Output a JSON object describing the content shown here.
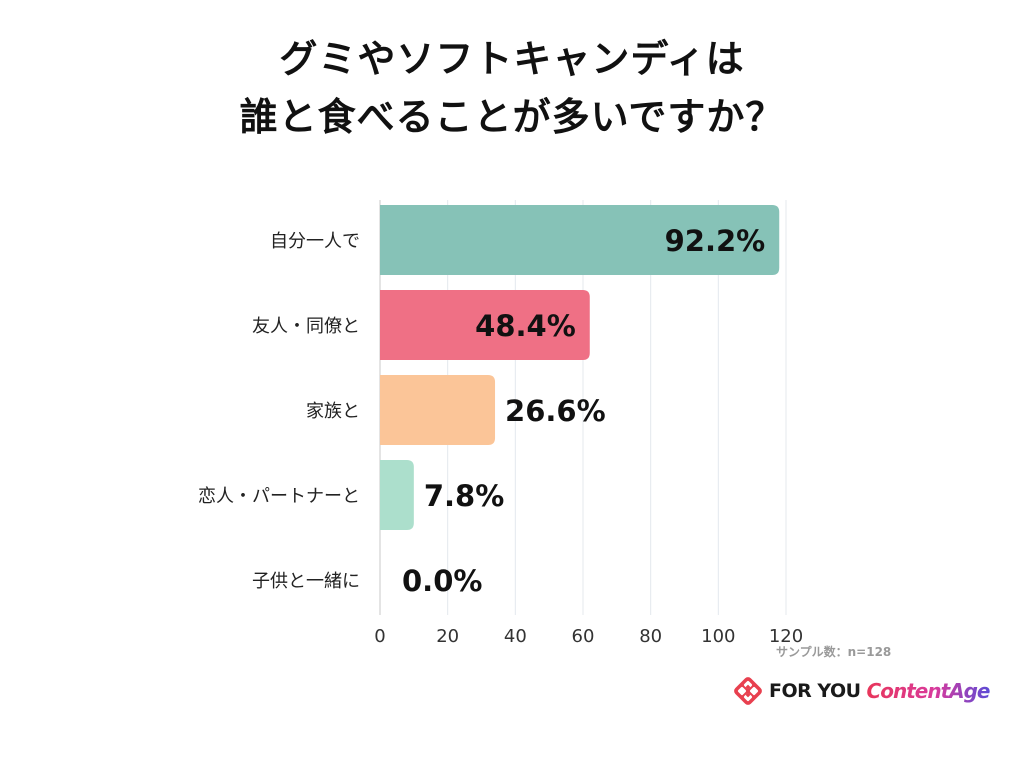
{
  "title": {
    "line1": "グミやソフトキャンディは",
    "line2": "誰と食べることが多いですか？"
  },
  "chart_data": {
    "type": "bar",
    "orientation": "horizontal",
    "categories": [
      "自分一人で",
      "友人・同僚と",
      "家族と",
      "恋人・パートナーと",
      "子供と一緒に"
    ],
    "values": [
      118,
      62,
      34,
      10,
      0
    ],
    "data_labels": [
      "92.2%",
      "48.4%",
      "26.6%",
      "7.8%",
      "0.0%"
    ],
    "colors": [
      "#86c2b7",
      "#ef7085",
      "#fbc598",
      "#acdfcc",
      "#cccccc"
    ],
    "xlim": [
      0,
      120
    ],
    "xticks": [
      "0",
      "20",
      "40",
      "60",
      "80",
      "100",
      "120"
    ],
    "grid": true,
    "legend": "none"
  },
  "sample_note": "サンプル数：n=128",
  "logo": {
    "mark": "for-you-logo-icon",
    "brand1": "FOR YOU",
    "brand2": "ContentAge"
  }
}
